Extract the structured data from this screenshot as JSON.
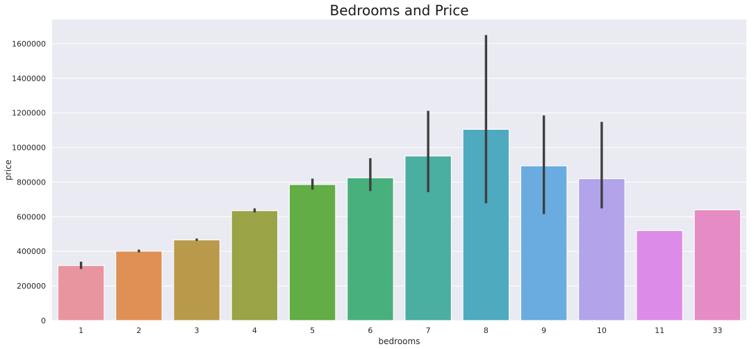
{
  "chart_data": {
    "type": "bar",
    "title": "Bedrooms and Price",
    "xlabel": "bedrooms",
    "ylabel": "price",
    "categories": [
      "1",
      "2",
      "3",
      "4",
      "5",
      "6",
      "7",
      "8",
      "9",
      "10",
      "11",
      "33"
    ],
    "values": [
      318000,
      401000,
      466000,
      635000,
      786000,
      825000,
      951000,
      1105000,
      894000,
      820000,
      520000,
      640000
    ],
    "ci_low": [
      298000,
      394000,
      460000,
      625000,
      756000,
      748000,
      742000,
      678000,
      615000,
      648000,
      null,
      null
    ],
    "ci_high": [
      340000,
      410000,
      474000,
      648000,
      820000,
      938000,
      1212000,
      1650000,
      1185000,
      1148000,
      null,
      null
    ],
    "colors": [
      "#e8959f",
      "#e08f55",
      "#b89a4a",
      "#9aa346",
      "#62ad45",
      "#48b07c",
      "#4aafa0",
      "#4eaabe",
      "#6aace0",
      "#b3a3ea",
      "#dd8be8",
      "#e68cc4"
    ],
    "ylim": [
      0,
      1740000
    ],
    "yticks": [
      0,
      200000,
      400000,
      600000,
      800000,
      1000000,
      1200000,
      1400000,
      1600000
    ],
    "grid": true,
    "background": "#eaeaf2",
    "errorbar_color": "#3f3f3f"
  }
}
